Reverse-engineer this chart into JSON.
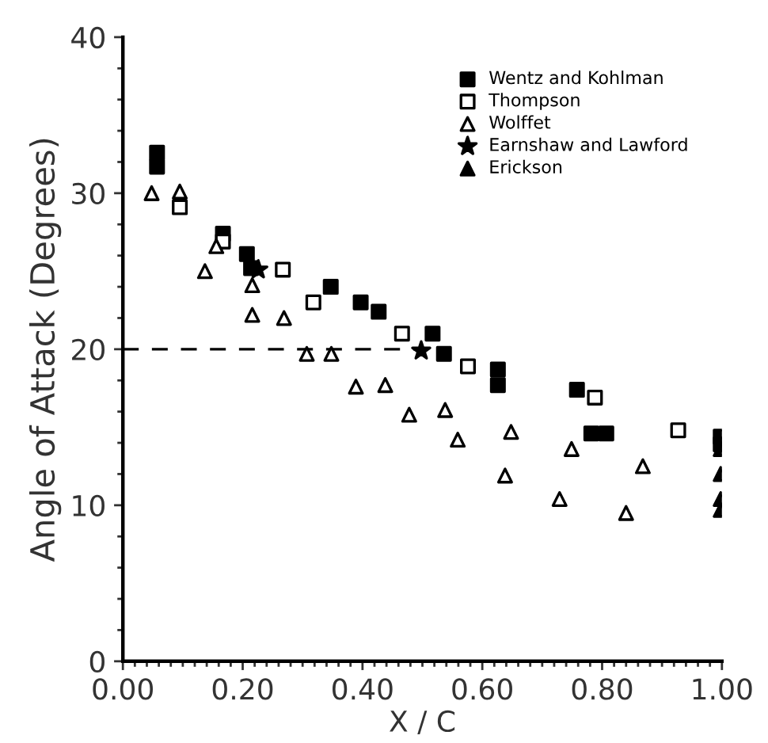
{
  "chart_data": {
    "type": "scatter",
    "xlabel": "X / C",
    "ylabel": "Angle of Attack (Degrees)",
    "xlim": [
      0,
      1
    ],
    "ylim": [
      0,
      40
    ],
    "xticks": [
      {
        "value": 0,
        "label": "0.00"
      },
      {
        "value": 0.02,
        "label": null
      },
      {
        "value": 0.04,
        "label": null
      },
      {
        "value": 0.06,
        "label": null
      },
      {
        "value": 0.08,
        "label": null
      },
      {
        "value": 0.1,
        "label": null
      },
      {
        "value": 0.12,
        "label": null
      },
      {
        "value": 0.14,
        "label": null
      },
      {
        "value": 0.16,
        "label": null
      },
      {
        "value": 0.18,
        "label": null
      },
      {
        "value": 0.2,
        "label": "0.20"
      },
      {
        "value": 0.22,
        "label": null
      },
      {
        "value": 0.24,
        "label": null
      },
      {
        "value": 0.26,
        "label": null
      },
      {
        "value": 0.28,
        "label": null
      },
      {
        "value": 0.3,
        "label": null
      },
      {
        "value": 0.32,
        "label": null
      },
      {
        "value": 0.34,
        "label": null
      },
      {
        "value": 0.36,
        "label": null
      },
      {
        "value": 0.38,
        "label": null
      },
      {
        "value": 0.4,
        "label": "0.40"
      },
      {
        "value": 0.42,
        "label": null
      },
      {
        "value": 0.44,
        "label": null
      },
      {
        "value": 0.46,
        "label": null
      },
      {
        "value": 0.48,
        "label": null
      },
      {
        "value": 0.5,
        "label": null
      },
      {
        "value": 0.52,
        "label": null
      },
      {
        "value": 0.54,
        "label": null
      },
      {
        "value": 0.56,
        "label": null
      },
      {
        "value": 0.58,
        "label": null
      },
      {
        "value": 0.6,
        "label": "0.60"
      },
      {
        "value": 0.62,
        "label": null
      },
      {
        "value": 0.64,
        "label": null
      },
      {
        "value": 0.66,
        "label": null
      },
      {
        "value": 0.68,
        "label": null
      },
      {
        "value": 0.7,
        "label": null
      },
      {
        "value": 0.72,
        "label": null
      },
      {
        "value": 0.74,
        "label": null
      },
      {
        "value": 0.76,
        "label": null
      },
      {
        "value": 0.78,
        "label": null
      },
      {
        "value": 0.8,
        "label": "0.80"
      },
      {
        "value": 0.82,
        "label": null
      },
      {
        "value": 0.84,
        "label": null
      },
      {
        "value": 0.86,
        "label": null
      },
      {
        "value": 0.88,
        "label": null
      },
      {
        "value": 0.9,
        "label": null
      },
      {
        "value": 0.92,
        "label": null
      },
      {
        "value": 0.94,
        "label": null
      },
      {
        "value": 0.96,
        "label": null
      },
      {
        "value": 0.98,
        "label": null
      },
      {
        "value": 1,
        "label": "1.00"
      }
    ],
    "yticks": [
      0,
      {
        "value": 2,
        "label": null
      },
      {
        "value": 4,
        "label": null
      },
      {
        "value": 6,
        "label": null
      },
      {
        "value": 8,
        "label": null
      },
      10,
      {
        "value": 12,
        "label": null
      },
      {
        "value": 14,
        "label": null
      },
      {
        "value": 16,
        "label": null
      },
      {
        "value": 18,
        "label": null
      },
      20,
      {
        "value": 22,
        "label": null
      },
      {
        "value": 24,
        "label": null
      },
      {
        "value": 26,
        "label": null
      },
      {
        "value": 28,
        "label": null
      },
      30,
      {
        "value": 32,
        "label": null
      },
      {
        "value": 34,
        "label": null
      },
      {
        "value": 36,
        "label": null
      },
      {
        "value": 38,
        "label": null
      },
      40
    ],
    "grid": false,
    "legend": "top right",
    "series": [
      {
        "name": "Wentz and Kohlman",
        "color": "#000000",
        "marker": "square",
        "x": [
          0.057,
          0.057,
          0.167,
          0.207,
          0.214,
          0.347,
          0.397,
          0.427,
          0.517,
          0.536,
          0.626,
          0.626,
          0.758,
          0.782,
          0.807,
          0.998,
          0.998
        ],
        "values": [
          32.6,
          31.7,
          27.4,
          26.1,
          25.2,
          24.0,
          23.0,
          22.4,
          21.0,
          19.7,
          18.7,
          17.7,
          17.4,
          14.6,
          14.6,
          14.4,
          13.9
        ]
      },
      {
        "name": "Thompson",
        "color": "#000000",
        "marker": "square-open",
        "x": [
          0.095,
          0.167,
          0.267,
          0.318,
          0.466,
          0.576,
          0.788,
          0.927
        ],
        "values": [
          29.1,
          26.9,
          25.1,
          23.0,
          21.0,
          18.9,
          16.9,
          14.8
        ]
      },
      {
        "name": "Wolffet",
        "color": "#000000",
        "marker": "triangle-open",
        "x": [
          0.048,
          0.095,
          0.137,
          0.156,
          0.216,
          0.216,
          0.269,
          0.307,
          0.348,
          0.389,
          0.438,
          0.478,
          0.538,
          0.559,
          0.638,
          0.648,
          0.729,
          0.749,
          0.84,
          0.868
        ],
        "values": [
          30.0,
          30.1,
          25.0,
          26.6,
          24.1,
          22.2,
          22.0,
          19.7,
          19.7,
          17.6,
          17.7,
          15.8,
          16.1,
          14.2,
          11.9,
          14.7,
          10.4,
          13.6,
          9.5,
          12.5
        ]
      },
      {
        "name": "Earnshaw and Lawford",
        "color": "#000000",
        "marker": "star",
        "x": [
          0.226,
          0.498
        ],
        "values": [
          25.1,
          19.9
        ]
      },
      {
        "name": "Erickson",
        "color": "#000000",
        "marker": "triangle",
        "x": [
          0.998,
          0.998,
          0.998,
          0.998
        ],
        "values": [
          13.6,
          12.0,
          10.4,
          9.7
        ]
      },
      {
        "type": "line",
        "color": "#000000",
        "line_style": "dashed",
        "marker": "none",
        "x": [
          0,
          0.5
        ],
        "values": [
          20,
          20
        ]
      }
    ]
  }
}
